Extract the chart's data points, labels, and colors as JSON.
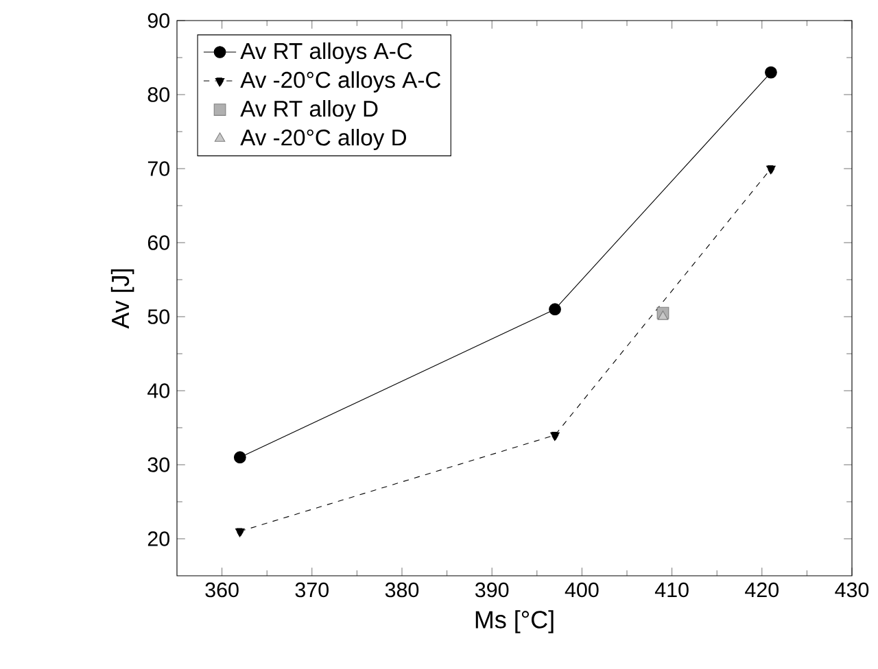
{
  "chart_data": {
    "type": "line",
    "xlabel": "Ms [°C]",
    "ylabel": "Av [J]",
    "xlim": [
      355,
      430
    ],
    "ylim": [
      15,
      90
    ],
    "xticks": [
      360,
      370,
      380,
      390,
      400,
      410,
      420,
      430
    ],
    "yticks": [
      20,
      30,
      40,
      50,
      60,
      70,
      80,
      90
    ],
    "grid": false,
    "legend": "top left",
    "series": [
      {
        "name": "Av RT alloys A-C",
        "color": "#000000",
        "marker": "circle",
        "line_style": "solid",
        "x": [
          362,
          397,
          421
        ],
        "values": [
          31,
          51,
          83
        ]
      },
      {
        "name": "Av -20°C alloys A-C",
        "color": "#000000",
        "marker": "triangle-down",
        "line_style": "dashed",
        "x": [
          362,
          397,
          421
        ],
        "values": [
          21,
          34,
          70
        ]
      },
      {
        "name": "Av RT alloy D",
        "type": "scatter",
        "color": "#b0b0b0",
        "marker": "square",
        "x": [
          409
        ],
        "values": [
          50.5
        ]
      },
      {
        "name": "Av -20°C alloy D",
        "type": "scatter",
        "color": "#c8c8c8",
        "marker": "triangle",
        "x": [
          409
        ],
        "values": [
          50
        ]
      }
    ]
  }
}
